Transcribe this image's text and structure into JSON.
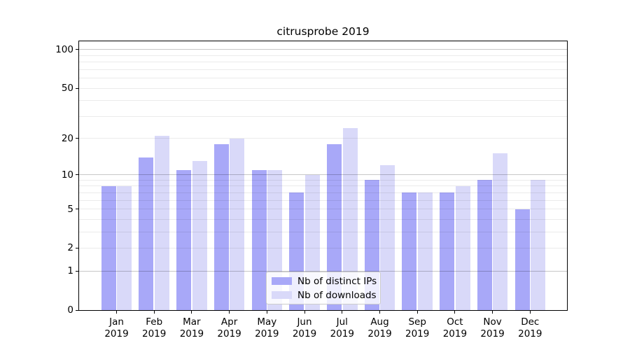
{
  "chart_data": {
    "type": "bar",
    "title": "citrusprobe 2019",
    "categories": [
      "Jan 2019",
      "Feb 2019",
      "Mar 2019",
      "Apr 2019",
      "May 2019",
      "Jun 2019",
      "Jul 2019",
      "Aug 2019",
      "Sep 2019",
      "Oct 2019",
      "Nov 2019",
      "Dec 2019"
    ],
    "series": [
      {
        "name": "Nb of distinct IPs",
        "color": "#a8a8f8",
        "values": [
          8,
          14,
          11,
          18,
          11,
          7,
          18,
          9,
          7,
          7,
          9,
          5
        ]
      },
      {
        "name": "Nb of downloads",
        "color": "#d9d9f9",
        "values": [
          8,
          21,
          13,
          20,
          11,
          10,
          24,
          12,
          7,
          8,
          15,
          9
        ]
      }
    ],
    "xlabel": "",
    "ylabel": "",
    "y_axis": {
      "scale": "log1p",
      "ticks": [
        0,
        1,
        2,
        5,
        10,
        20,
        50,
        100
      ],
      "major_gridlines": [
        1,
        10,
        100
      ],
      "minor_gridlines": [
        2,
        3,
        4,
        5,
        6,
        7,
        8,
        9,
        20,
        30,
        40,
        50,
        60,
        70,
        80,
        90
      ],
      "ylim": [
        0,
        116
      ],
      "grid": true
    },
    "legend_position": "lower center inside plot"
  },
  "colors": {
    "background": "#ffffff",
    "axis": "#000000",
    "grid_minor": "rgba(0,0,0,0.08)",
    "grid_major": "rgba(0,0,0,0.22)",
    "bar_distinct_ips": "#a8a8f8",
    "bar_downloads": "#d9d9f9"
  }
}
